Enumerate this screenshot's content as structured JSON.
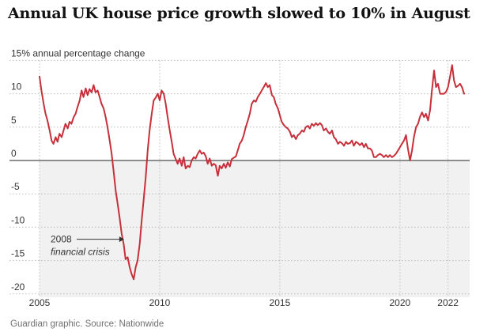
{
  "title": "Annual UK house price growth slowed to 10% in August",
  "source": "Guardian graphic. Source: Nationwide",
  "colors": {
    "line": "#c7303a",
    "negative_band": "#f1f1f1",
    "grid": "#bdbdbd",
    "text": "#333333"
  },
  "chart_data": {
    "type": "line",
    "title": "Annual UK house price growth slowed to 10% in August",
    "ylabel": "15% annual percentage change",
    "xlabel": "",
    "ylim": [
      -20.5,
      15
    ],
    "xlim": [
      2005.0,
      2022.9
    ],
    "grid": true,
    "y_ticks": [
      {
        "value": 15,
        "label": "15% annual percentage change"
      },
      {
        "value": 10,
        "label": "10"
      },
      {
        "value": 5,
        "label": "5"
      },
      {
        "value": 0,
        "label": "0"
      },
      {
        "value": -5,
        "label": "-5"
      },
      {
        "value": -10,
        "label": "-10"
      },
      {
        "value": -15,
        "label": "-15"
      },
      {
        "value": -20,
        "label": "-20"
      }
    ],
    "x_ticks": [
      {
        "value": 2005,
        "label": "2005"
      },
      {
        "value": 2010,
        "label": "2010"
      },
      {
        "value": 2015,
        "label": "2015"
      },
      {
        "value": 2020,
        "label": "2020"
      },
      {
        "value": 2022,
        "label": "2022"
      }
    ],
    "annotation": {
      "lines": [
        "2008",
        "financial crisis"
      ],
      "arrow_to": {
        "x": 2008.55,
        "y": -11.8
      }
    },
    "series": [
      {
        "points": [
          [
            2005.0,
            12.6
          ],
          [
            2005.08,
            10.5
          ],
          [
            2005.17,
            8.5
          ],
          [
            2005.25,
            7.0
          ],
          [
            2005.33,
            6.0
          ],
          [
            2005.42,
            4.5
          ],
          [
            2005.5,
            3.0
          ],
          [
            2005.58,
            2.5
          ],
          [
            2005.67,
            3.5
          ],
          [
            2005.75,
            2.8
          ],
          [
            2005.83,
            4.0
          ],
          [
            2005.92,
            3.5
          ],
          [
            2006.0,
            4.5
          ],
          [
            2006.08,
            5.5
          ],
          [
            2006.17,
            4.8
          ],
          [
            2006.25,
            5.8
          ],
          [
            2006.33,
            5.5
          ],
          [
            2006.42,
            6.5
          ],
          [
            2006.5,
            7.0
          ],
          [
            2006.58,
            8.0
          ],
          [
            2006.67,
            9.0
          ],
          [
            2006.75,
            10.5
          ],
          [
            2006.83,
            9.5
          ],
          [
            2006.92,
            10.8
          ],
          [
            2007.0,
            9.8
          ],
          [
            2007.08,
            10.7
          ],
          [
            2007.17,
            10.2
          ],
          [
            2007.25,
            11.3
          ],
          [
            2007.33,
            10.2
          ],
          [
            2007.42,
            10.5
          ],
          [
            2007.5,
            9.5
          ],
          [
            2007.58,
            8.5
          ],
          [
            2007.67,
            7.8
          ],
          [
            2007.75,
            6.5
          ],
          [
            2007.83,
            5.0
          ],
          [
            2007.92,
            3.0
          ],
          [
            2008.0,
            1.0
          ],
          [
            2008.08,
            -1.5
          ],
          [
            2008.17,
            -4.5
          ],
          [
            2008.25,
            -6.5
          ],
          [
            2008.33,
            -8.5
          ],
          [
            2008.42,
            -11.0
          ],
          [
            2008.5,
            -12.5
          ],
          [
            2008.58,
            -14.8
          ],
          [
            2008.67,
            -14.5
          ],
          [
            2008.75,
            -16.0
          ],
          [
            2008.83,
            -17.0
          ],
          [
            2008.92,
            -17.8
          ],
          [
            2009.0,
            -16.0
          ],
          [
            2009.08,
            -15.0
          ],
          [
            2009.17,
            -12.5
          ],
          [
            2009.25,
            -9.0
          ],
          [
            2009.33,
            -6.0
          ],
          [
            2009.42,
            -2.5
          ],
          [
            2009.5,
            1.5
          ],
          [
            2009.58,
            4.5
          ],
          [
            2009.67,
            7.0
          ],
          [
            2009.75,
            9.0
          ],
          [
            2009.83,
            9.4
          ],
          [
            2009.92,
            10.0
          ],
          [
            2010.0,
            9.0
          ],
          [
            2010.08,
            10.5
          ],
          [
            2010.17,
            10.0
          ],
          [
            2010.25,
            8.5
          ],
          [
            2010.33,
            6.5
          ],
          [
            2010.42,
            4.5
          ],
          [
            2010.5,
            2.8
          ],
          [
            2010.58,
            1.0
          ],
          [
            2010.67,
            0.2
          ],
          [
            2010.75,
            -0.5
          ],
          [
            2010.83,
            0.3
          ],
          [
            2010.92,
            -0.8
          ],
          [
            2011.0,
            0.5
          ],
          [
            2011.08,
            -1.2
          ],
          [
            2011.17,
            -0.8
          ],
          [
            2011.25,
            -1.0
          ],
          [
            2011.33,
            0.0
          ],
          [
            2011.42,
            0.5
          ],
          [
            2011.5,
            0.3
          ],
          [
            2011.58,
            1.0
          ],
          [
            2011.67,
            1.5
          ],
          [
            2011.75,
            1.0
          ],
          [
            2011.83,
            1.2
          ],
          [
            2011.92,
            0.6
          ],
          [
            2012.0,
            -0.5
          ],
          [
            2012.08,
            0.3
          ],
          [
            2012.17,
            -0.8
          ],
          [
            2012.25,
            -0.5
          ],
          [
            2012.33,
            -0.7
          ],
          [
            2012.42,
            -2.3
          ],
          [
            2012.5,
            -0.8
          ],
          [
            2012.58,
            -1.2
          ],
          [
            2012.67,
            -0.5
          ],
          [
            2012.75,
            -1.1
          ],
          [
            2012.83,
            -0.3
          ],
          [
            2012.92,
            -0.9
          ],
          [
            2013.0,
            0.2
          ],
          [
            2013.08,
            0.4
          ],
          [
            2013.17,
            0.6
          ],
          [
            2013.25,
            1.5
          ],
          [
            2013.33,
            2.5
          ],
          [
            2013.42,
            3.0
          ],
          [
            2013.5,
            3.8
          ],
          [
            2013.58,
            5.0
          ],
          [
            2013.67,
            6.0
          ],
          [
            2013.75,
            7.0
          ],
          [
            2013.83,
            8.5
          ],
          [
            2013.92,
            9.0
          ],
          [
            2014.0,
            8.8
          ],
          [
            2014.08,
            9.5
          ],
          [
            2014.17,
            10.0
          ],
          [
            2014.25,
            10.5
          ],
          [
            2014.33,
            11.0
          ],
          [
            2014.42,
            11.6
          ],
          [
            2014.5,
            11.0
          ],
          [
            2014.58,
            11.3
          ],
          [
            2014.67,
            9.8
          ],
          [
            2014.75,
            9.5
          ],
          [
            2014.83,
            8.5
          ],
          [
            2014.92,
            7.8
          ],
          [
            2015.0,
            6.8
          ],
          [
            2015.08,
            5.8
          ],
          [
            2015.17,
            5.3
          ],
          [
            2015.25,
            5.0
          ],
          [
            2015.33,
            4.8
          ],
          [
            2015.42,
            4.3
          ],
          [
            2015.5,
            3.5
          ],
          [
            2015.58,
            3.8
          ],
          [
            2015.67,
            3.2
          ],
          [
            2015.75,
            3.8
          ],
          [
            2015.83,
            4.0
          ],
          [
            2015.92,
            4.5
          ],
          [
            2016.0,
            4.3
          ],
          [
            2016.08,
            5.0
          ],
          [
            2016.17,
            5.2
          ],
          [
            2016.25,
            4.8
          ],
          [
            2016.33,
            5.5
          ],
          [
            2016.42,
            5.2
          ],
          [
            2016.5,
            5.6
          ],
          [
            2016.58,
            5.3
          ],
          [
            2016.67,
            5.6
          ],
          [
            2016.75,
            5.3
          ],
          [
            2016.83,
            4.5
          ],
          [
            2016.92,
            4.8
          ],
          [
            2017.0,
            4.3
          ],
          [
            2017.08,
            4.0
          ],
          [
            2017.17,
            4.5
          ],
          [
            2017.25,
            3.5
          ],
          [
            2017.33,
            3.2
          ],
          [
            2017.42,
            2.5
          ],
          [
            2017.5,
            2.8
          ],
          [
            2017.58,
            2.6
          ],
          [
            2017.67,
            2.2
          ],
          [
            2017.75,
            2.8
          ],
          [
            2017.83,
            2.5
          ],
          [
            2017.92,
            2.6
          ],
          [
            2018.0,
            3.0
          ],
          [
            2018.08,
            2.2
          ],
          [
            2018.17,
            2.8
          ],
          [
            2018.25,
            2.6
          ],
          [
            2018.33,
            2.3
          ],
          [
            2018.42,
            2.6
          ],
          [
            2018.5,
            2.0
          ],
          [
            2018.58,
            2.5
          ],
          [
            2018.67,
            1.8
          ],
          [
            2018.75,
            1.8
          ],
          [
            2018.83,
            1.5
          ],
          [
            2018.92,
            0.5
          ],
          [
            2019.0,
            0.5
          ],
          [
            2019.08,
            0.8
          ],
          [
            2019.17,
            1.0
          ],
          [
            2019.25,
            0.8
          ],
          [
            2019.33,
            0.5
          ],
          [
            2019.42,
            0.8
          ],
          [
            2019.5,
            0.5
          ],
          [
            2019.58,
            0.8
          ],
          [
            2019.67,
            0.5
          ],
          [
            2019.75,
            0.7
          ],
          [
            2019.83,
            1.0
          ],
          [
            2019.92,
            1.5
          ],
          [
            2020.0,
            2.0
          ],
          [
            2020.08,
            2.5
          ],
          [
            2020.17,
            3.0
          ],
          [
            2020.25,
            3.8
          ],
          [
            2020.33,
            1.8
          ],
          [
            2020.42,
            0.0
          ],
          [
            2020.5,
            1.5
          ],
          [
            2020.58,
            3.5
          ],
          [
            2020.67,
            5.0
          ],
          [
            2020.75,
            5.5
          ],
          [
            2020.83,
            6.5
          ],
          [
            2020.92,
            7.2
          ],
          [
            2021.0,
            6.5
          ],
          [
            2021.08,
            7.0
          ],
          [
            2021.17,
            6.0
          ],
          [
            2021.25,
            7.5
          ],
          [
            2021.33,
            10.5
          ],
          [
            2021.42,
            13.5
          ],
          [
            2021.5,
            11.0
          ],
          [
            2021.58,
            11.5
          ],
          [
            2021.67,
            10.0
          ],
          [
            2021.75,
            10.0
          ],
          [
            2021.83,
            10.0
          ],
          [
            2021.92,
            10.3
          ],
          [
            2022.0,
            11.0
          ],
          [
            2022.08,
            12.5
          ],
          [
            2022.17,
            14.3
          ],
          [
            2022.25,
            12.0
          ],
          [
            2022.33,
            11.0
          ],
          [
            2022.42,
            11.2
          ],
          [
            2022.5,
            11.5
          ],
          [
            2022.58,
            11.0
          ],
          [
            2022.67,
            10.0
          ]
        ]
      }
    ]
  }
}
